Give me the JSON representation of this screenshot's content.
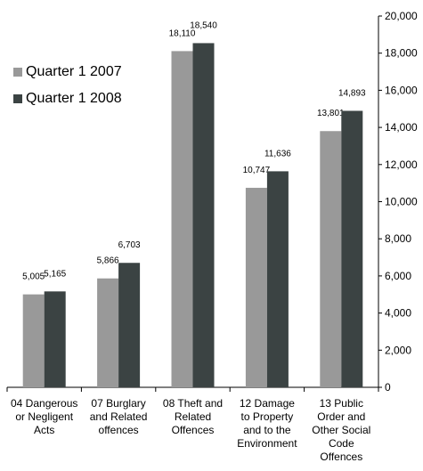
{
  "chart_data": {
    "type": "bar",
    "title": "",
    "xlabel": "",
    "ylabel": "",
    "ylim": [
      0,
      20000
    ],
    "y_ticks": [
      "0",
      "2,000",
      "4,000",
      "6,000",
      "8,000",
      "10,000",
      "12,000",
      "14,000",
      "16,000",
      "18,000",
      "20,000"
    ],
    "y_axis_side": "right",
    "grid": false,
    "legend_position": "top-left",
    "categories": [
      [
        "04 Dangerous",
        "or Negligent",
        "Acts"
      ],
      [
        "07 Burglary",
        "and Related",
        "offences"
      ],
      [
        "08 Theft and",
        "Related",
        "Offences"
      ],
      [
        "12 Damage",
        "to Property",
        "and to the",
        "Environment"
      ],
      [
        "13 Public",
        "Order and",
        "Other Social",
        "Code",
        "Offences"
      ]
    ],
    "series": [
      {
        "name": "Quarter 1 2007",
        "color": "#999999",
        "values": [
          5005,
          5866,
          18110,
          10747,
          13801
        ],
        "labels": [
          "5,005",
          "5,866",
          "18,110",
          "10,747",
          "13,801"
        ]
      },
      {
        "name": "Quarter 1 2008",
        "color": "#3b4343",
        "values": [
          5165,
          6703,
          18540,
          11636,
          14893
        ],
        "labels": [
          "5,165",
          "6,703",
          "18,540",
          "11,636",
          "14,893"
        ]
      }
    ]
  }
}
